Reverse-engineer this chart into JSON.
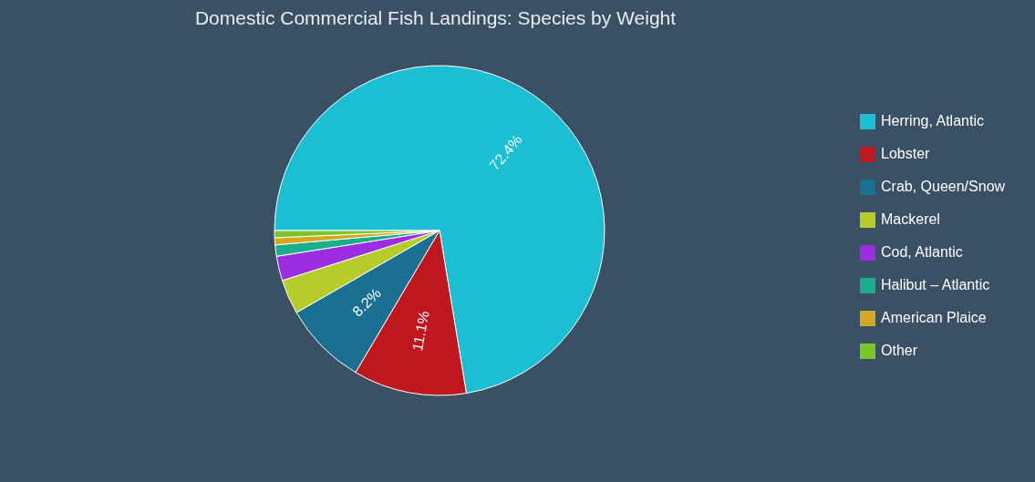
{
  "chart_data": {
    "type": "pie",
    "title": "Domestic Commercial Fish Landings: Species by Weight",
    "categories": [
      "Herring, Atlantic",
      "Lobster",
      "Crab, Queen/Snow",
      "Mackerel",
      "Cod, Atlantic",
      "Halibut – Atlantic",
      "American Plaice",
      "Other"
    ],
    "values": [
      72.4,
      11.1,
      8.2,
      3.4,
      2.4,
      1.1,
      0.7,
      0.7
    ],
    "value_labels": [
      "72.4%",
      "11.1%",
      "8.2%",
      null,
      null,
      null,
      null,
      null
    ],
    "colors": [
      "#1bbfd4",
      "#c0171f",
      "#1a7090",
      "#b5cc2a",
      "#9b2ee0",
      "#1aae8c",
      "#d4a820",
      "#7ac52a"
    ],
    "legend": "right"
  }
}
